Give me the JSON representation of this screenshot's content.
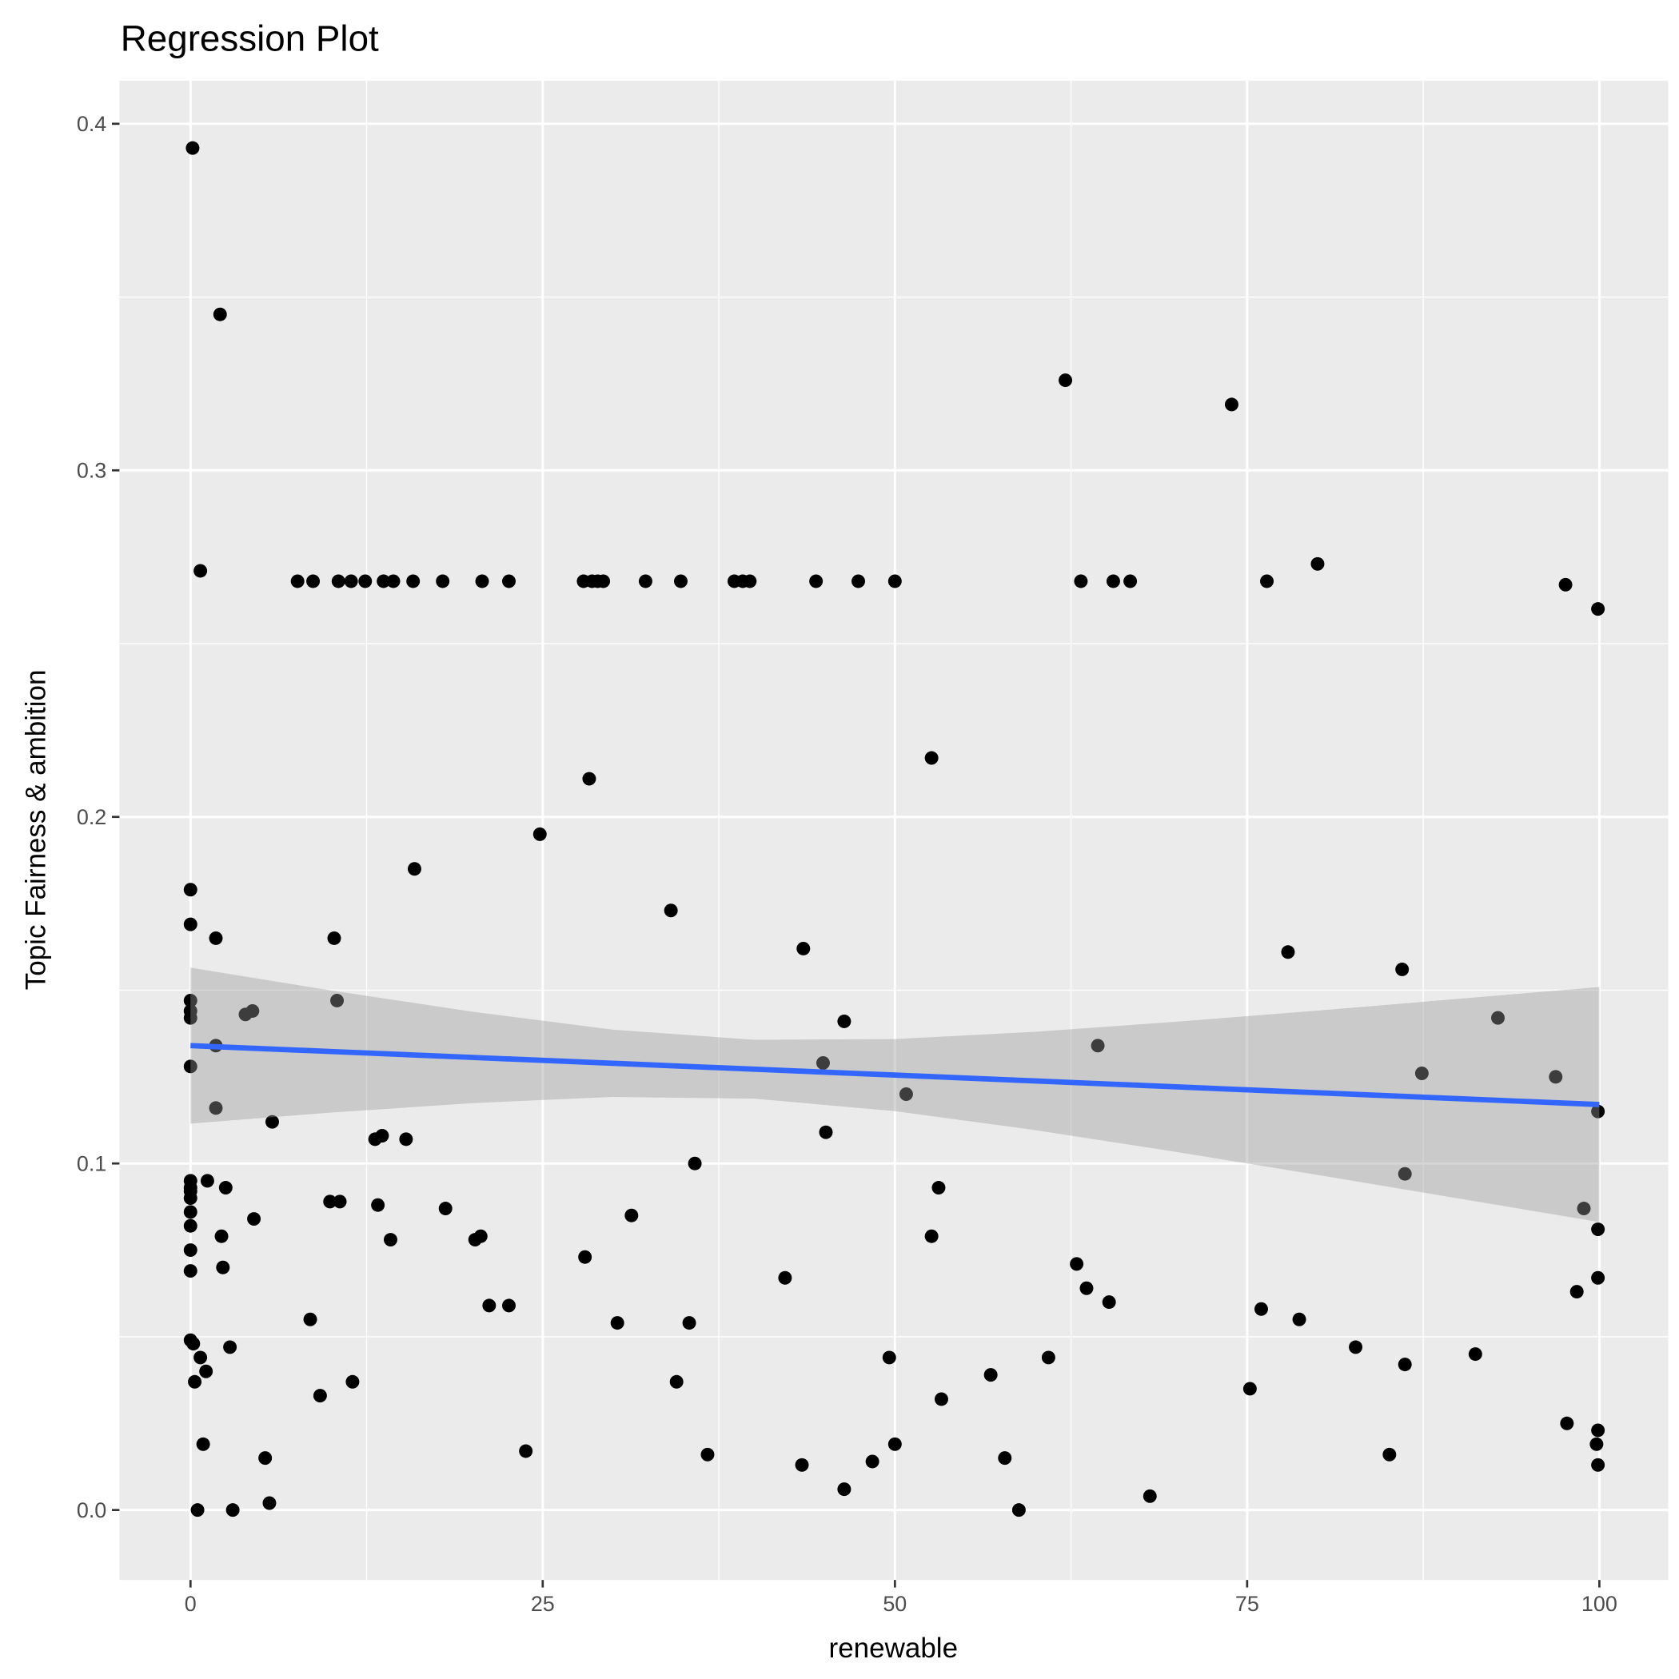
{
  "chart_data": {
    "type": "scatter",
    "title": "Regression Plot",
    "xlabel": "renewable",
    "ylabel": "Topic Fairness & ambition",
    "xlim": [
      -5,
      105
    ],
    "ylim": [
      -0.02,
      0.412
    ],
    "grid": true,
    "legend": "none",
    "xticks": [
      {
        "value": 0,
        "label": "0"
      },
      {
        "value": 25,
        "label": "25"
      },
      {
        "value": 50,
        "label": "50"
      },
      {
        "value": 75,
        "label": "75"
      },
      {
        "value": 100,
        "label": "100"
      }
    ],
    "yticks": [
      {
        "value": 0,
        "label": "0.0"
      },
      {
        "value": 0.1,
        "label": "0.1"
      },
      {
        "value": 0.2,
        "label": "0.2"
      },
      {
        "value": 0.3,
        "label": "0.3"
      },
      {
        "value": 0.4,
        "label": "0.4"
      }
    ],
    "points": [
      [
        0.15,
        0.393
      ],
      [
        2.1,
        0.345
      ],
      [
        0.7,
        0.271
      ],
      [
        80.0,
        0.273
      ],
      [
        97.6,
        0.267
      ],
      [
        99.9,
        0.26
      ],
      [
        62.1,
        0.326
      ],
      [
        73.9,
        0.319
      ],
      [
        7.6,
        0.268
      ],
      [
        8.7,
        0.268
      ],
      [
        10.5,
        0.268
      ],
      [
        11.4,
        0.268
      ],
      [
        12.4,
        0.268
      ],
      [
        13.7,
        0.268
      ],
      [
        14.4,
        0.268
      ],
      [
        15.8,
        0.268
      ],
      [
        17.9,
        0.268
      ],
      [
        20.7,
        0.268
      ],
      [
        22.6,
        0.268
      ],
      [
        27.9,
        0.268
      ],
      [
        28.5,
        0.268
      ],
      [
        28.9,
        0.268
      ],
      [
        29.3,
        0.268
      ],
      [
        32.3,
        0.268
      ],
      [
        34.8,
        0.268
      ],
      [
        38.6,
        0.268
      ],
      [
        39.2,
        0.268
      ],
      [
        39.7,
        0.268
      ],
      [
        44.4,
        0.268
      ],
      [
        47.4,
        0.268
      ],
      [
        50.0,
        0.268
      ],
      [
        63.2,
        0.268
      ],
      [
        65.5,
        0.268
      ],
      [
        66.7,
        0.268
      ],
      [
        76.4,
        0.268
      ],
      [
        52.6,
        0.217
      ],
      [
        28.3,
        0.211
      ],
      [
        24.8,
        0.195
      ],
      [
        15.9,
        0.185
      ],
      [
        0,
        0.179
      ],
      [
        0,
        0.169
      ],
      [
        1.8,
        0.165
      ],
      [
        10.2,
        0.165
      ],
      [
        34.1,
        0.173
      ],
      [
        43.5,
        0.162
      ],
      [
        77.9,
        0.161
      ],
      [
        86.0,
        0.156
      ],
      [
        0,
        0.147
      ],
      [
        0,
        0.144
      ],
      [
        0,
        0.142
      ],
      [
        3.9,
        0.143
      ],
      [
        4.4,
        0.144
      ],
      [
        10.4,
        0.147
      ],
      [
        46.4,
        0.141
      ],
      [
        92.8,
        0.142
      ],
      [
        1.8,
        0.134
      ],
      [
        64.4,
        0.134
      ],
      [
        0,
        0.128
      ],
      [
        44.9,
        0.129
      ],
      [
        87.4,
        0.126
      ],
      [
        96.9,
        0.125
      ],
      [
        50.8,
        0.12
      ],
      [
        99.9,
        0.115
      ],
      [
        1.8,
        0.116
      ],
      [
        5.8,
        0.112
      ],
      [
        13.1,
        0.107
      ],
      [
        13.6,
        0.108
      ],
      [
        15.3,
        0.107
      ],
      [
        45.1,
        0.109
      ],
      [
        35.8,
        0.1
      ],
      [
        86.2,
        0.097
      ],
      [
        0,
        0.095
      ],
      [
        1.2,
        0.095
      ],
      [
        0,
        0.093
      ],
      [
        0,
        0.092
      ],
      [
        0,
        0.09
      ],
      [
        2.5,
        0.093
      ],
      [
        53.1,
        0.093
      ],
      [
        9.9,
        0.089
      ],
      [
        10.6,
        0.089
      ],
      [
        13.3,
        0.088
      ],
      [
        18.1,
        0.087
      ],
      [
        98.9,
        0.087
      ],
      [
        0,
        0.086
      ],
      [
        31.3,
        0.085
      ],
      [
        4.5,
        0.084
      ],
      [
        0,
        0.082
      ],
      [
        99.9,
        0.081
      ],
      [
        2.2,
        0.079
      ],
      [
        20.2,
        0.078
      ],
      [
        20.6,
        0.079
      ],
      [
        14.2,
        0.078
      ],
      [
        52.6,
        0.079
      ],
      [
        0,
        0.075
      ],
      [
        28.0,
        0.073
      ],
      [
        62.9,
        0.071
      ],
      [
        2.3,
        0.07
      ],
      [
        0,
        0.069
      ],
      [
        42.2,
        0.067
      ],
      [
        99.9,
        0.067
      ],
      [
        63.6,
        0.064
      ],
      [
        98.4,
        0.063
      ],
      [
        21.2,
        0.059
      ],
      [
        22.6,
        0.059
      ],
      [
        65.2,
        0.06
      ],
      [
        76.0,
        0.058
      ],
      [
        8.5,
        0.055
      ],
      [
        78.7,
        0.055
      ],
      [
        30.3,
        0.054
      ],
      [
        35.4,
        0.054
      ],
      [
        0,
        0.049
      ],
      [
        0.2,
        0.048
      ],
      [
        2.8,
        0.047
      ],
      [
        82.7,
        0.047
      ],
      [
        91.2,
        0.045
      ],
      [
        49.6,
        0.044
      ],
      [
        0.7,
        0.044
      ],
      [
        60.9,
        0.044
      ],
      [
        86.2,
        0.042
      ],
      [
        1.1,
        0.04
      ],
      [
        56.8,
        0.039
      ],
      [
        0.3,
        0.037
      ],
      [
        11.5,
        0.037
      ],
      [
        34.5,
        0.037
      ],
      [
        75.2,
        0.035
      ],
      [
        9.2,
        0.033
      ],
      [
        53.3,
        0.032
      ],
      [
        97.7,
        0.025
      ],
      [
        99.9,
        0.023
      ],
      [
        0.9,
        0.019
      ],
      [
        50.0,
        0.019
      ],
      [
        99.8,
        0.019
      ],
      [
        23.8,
        0.017
      ],
      [
        36.7,
        0.016
      ],
      [
        85.1,
        0.016
      ],
      [
        5.3,
        0.015
      ],
      [
        57.8,
        0.015
      ],
      [
        48.4,
        0.014
      ],
      [
        43.4,
        0.013
      ],
      [
        99.9,
        0.013
      ],
      [
        5.6,
        0.002
      ],
      [
        46.4,
        0.006
      ],
      [
        68.1,
        0.004
      ],
      [
        0.5,
        0.0
      ],
      [
        3.0,
        0.0
      ],
      [
        58.8,
        0.0
      ]
    ],
    "fit": {
      "x": [
        0,
        10,
        20,
        30,
        40,
        50,
        60,
        70,
        80,
        90,
        100
      ],
      "y": [
        0.134,
        0.1323,
        0.1306,
        0.1289,
        0.1272,
        0.1255,
        0.1238,
        0.1221,
        0.1204,
        0.1187,
        0.117
      ],
      "lower": [
        0.1115,
        0.1147,
        0.1174,
        0.1192,
        0.1187,
        0.1151,
        0.1096,
        0.1033,
        0.0967,
        0.0899,
        0.0831
      ],
      "upper": [
        0.1565,
        0.1499,
        0.1438,
        0.1386,
        0.1357,
        0.1359,
        0.138,
        0.1409,
        0.1441,
        0.1475,
        0.1509
      ]
    },
    "colors": {
      "points": "#000000",
      "line": "#3366FF",
      "ribbon": "#999999",
      "panel": "#EBEBEB"
    }
  }
}
